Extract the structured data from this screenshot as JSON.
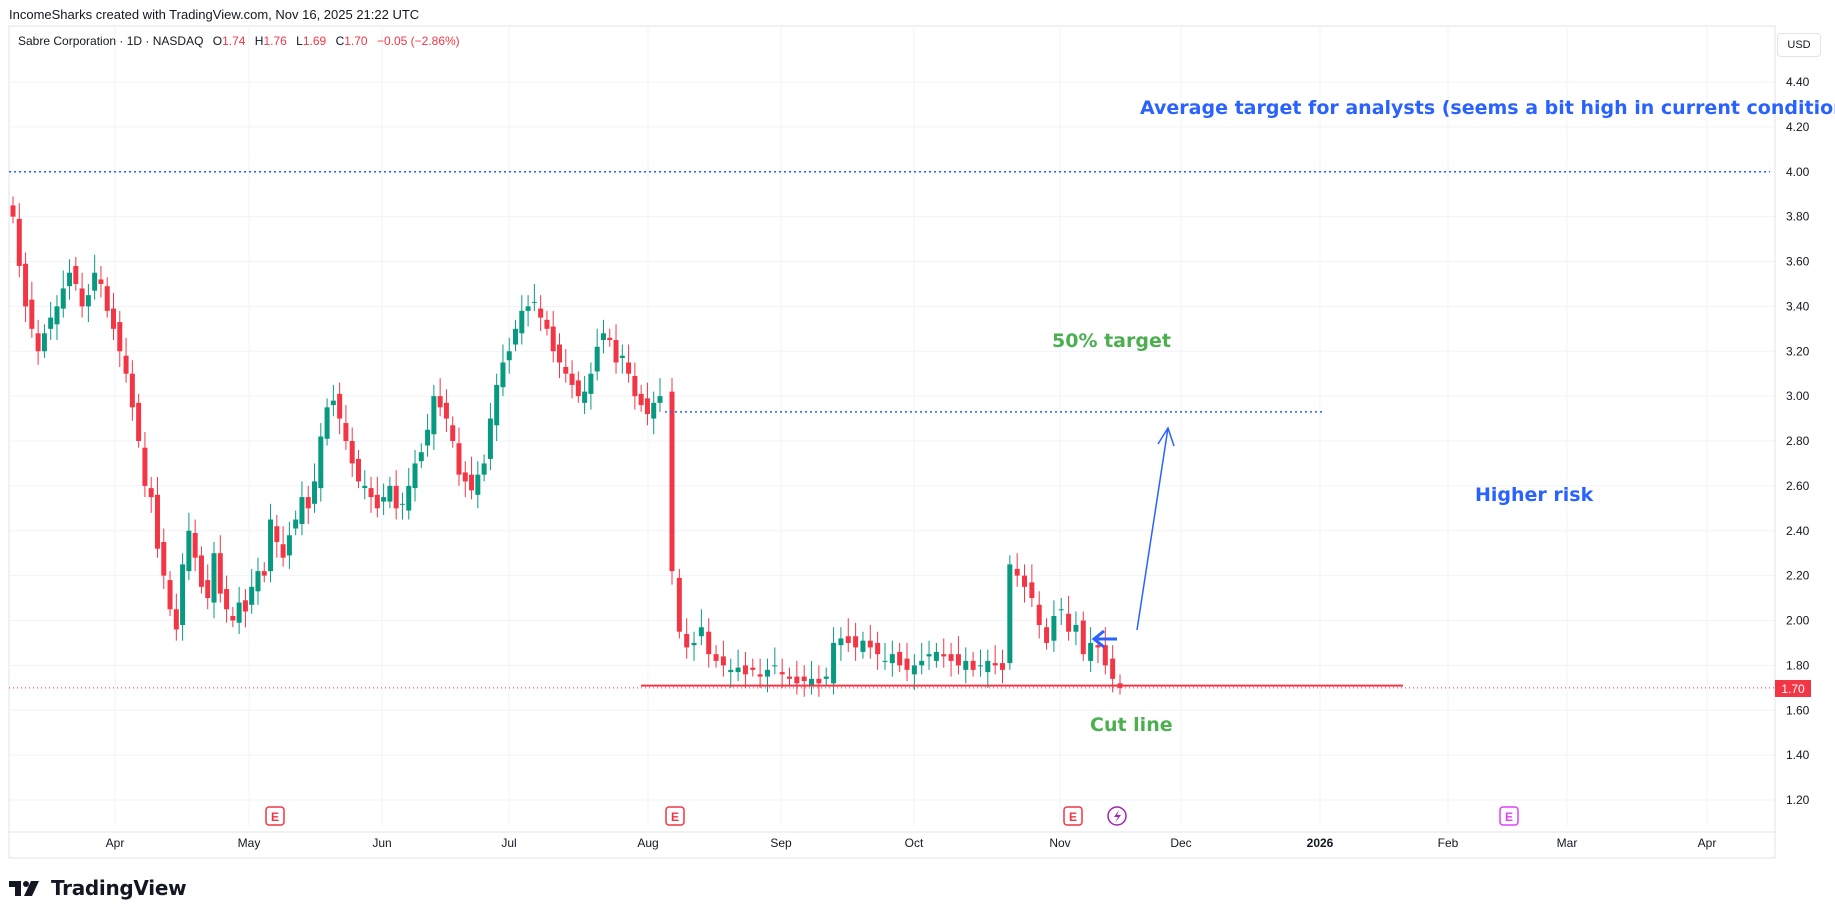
{
  "attribution": "IncomeSharks created with TradingView.com, Nov 16, 2025 21:22 UTC",
  "legend": {
    "symbol": "Sabre Corporation · 1D · NASDAQ",
    "o_label": "O",
    "o_value": "1.74",
    "h_label": "H",
    "h_value": "1.76",
    "l_label": "L",
    "l_value": "1.69",
    "c_label": "C",
    "c_value": "1.70",
    "change": "−0.05 (−2.86%)"
  },
  "currency": "USD",
  "last_price_label": "1.70",
  "logo_text": "TradingView",
  "colors": {
    "up": "#089981",
    "down": "#f23645",
    "blue": "#2962ff",
    "green": "#4caf50",
    "earnings": "#f23645",
    "earnings_future": "#e040fb",
    "dividend": "#9c27b0"
  },
  "chart_data": {
    "type": "candlestick",
    "ylim": [
      1.1,
      4.5
    ],
    "y_ticks": [
      "4.40",
      "4.20",
      "4.00",
      "3.80",
      "3.60",
      "3.40",
      "3.20",
      "3.00",
      "2.80",
      "2.60",
      "2.40",
      "2.20",
      "2.00",
      "1.80",
      "1.60",
      "1.40",
      "1.20"
    ],
    "x_ticks": [
      "Apr",
      "May",
      "Jun",
      "Jul",
      "Aug",
      "Sep",
      "Oct",
      "Nov",
      "Dec",
      "2026",
      "Feb",
      "Mar",
      "Apr"
    ],
    "ohlc_close_series": [
      3.8,
      3.58,
      3.4,
      3.3,
      3.2,
      3.28,
      3.35,
      3.4,
      3.48,
      3.55,
      3.5,
      3.4,
      3.45,
      3.55,
      3.5,
      3.38,
      3.3,
      3.2,
      3.1,
      2.95,
      2.8,
      2.6,
      2.55,
      2.32,
      2.2,
      2.05,
      1.96,
      2.25,
      2.4,
      2.28,
      2.15,
      2.1,
      2.3,
      2.12,
      2.05,
      2.0,
      2.08,
      2.04,
      2.15,
      2.22,
      2.2,
      2.45,
      2.35,
      2.28,
      2.38,
      2.45,
      2.55,
      2.5,
      2.62,
      2.82,
      2.95,
      2.98,
      2.9,
      2.8,
      2.7,
      2.62,
      2.6,
      2.55,
      2.5,
      2.55,
      2.6,
      2.5,
      2.52,
      2.6,
      2.7,
      2.75,
      2.85,
      3.0,
      2.95,
      2.9,
      2.8,
      2.65,
      2.62,
      2.58,
      2.65,
      2.7,
      2.9,
      3.05,
      3.15,
      3.2,
      3.3,
      3.38,
      3.4,
      3.42,
      3.35,
      3.3,
      3.2,
      3.15,
      3.1,
      3.05,
      3.0,
      3.02,
      3.1,
      3.22,
      3.28,
      3.25,
      3.15,
      3.18,
      3.1,
      3.0,
      2.96,
      2.92,
      2.97,
      3.0,
      2.22,
      1.95,
      1.88,
      1.9,
      1.97,
      1.85,
      1.82,
      1.8,
      1.78,
      1.79,
      1.76,
      1.78,
      1.75,
      1.78,
      1.8,
      1.76,
      1.74,
      1.72,
      1.73,
      1.74,
      1.72,
      1.75,
      1.9,
      1.92,
      1.9,
      1.88,
      1.91,
      1.88,
      1.85,
      1.82,
      1.85,
      1.8,
      1.78,
      1.8,
      1.82,
      1.85,
      1.86,
      1.84,
      1.82,
      1.8,
      1.82,
      1.78,
      1.8,
      1.82,
      1.8,
      1.78,
      2.25,
      2.2,
      2.15,
      2.1,
      1.98,
      1.9,
      2.02,
      2.05,
      1.95,
      1.98,
      1.85,
      1.9,
      1.88,
      1.8,
      1.74,
      1.7
    ],
    "annotations": {
      "analyst_target_text": "Average target for analysts (seems a bit high in current conditions)",
      "analyst_target_value": 4.0,
      "fifty_pct_target_text": "50% target",
      "fifty_pct_target_value": 2.93,
      "higher_risk_text": "Higher risk",
      "cut_line_text": "Cut line",
      "cut_line_value": 1.71
    }
  }
}
